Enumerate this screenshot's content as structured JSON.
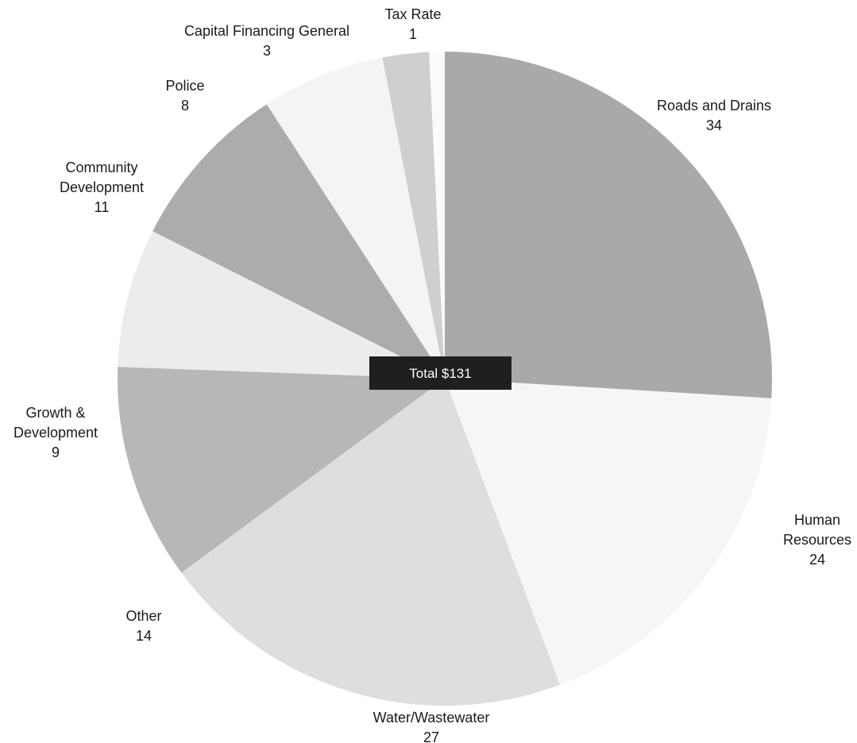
{
  "chart_data": {
    "type": "pie",
    "center_label": "Total $131",
    "start_direction": "top",
    "direction": "clockwise",
    "slices": [
      {
        "label_lines": [
          "Roads and Drains"
        ],
        "value": 34,
        "value_text": "34",
        "color": "#a9a9a9"
      },
      {
        "label_lines": [
          "Human",
          "Resources"
        ],
        "value": 24,
        "value_text": "24",
        "color": "#f6f6f6"
      },
      {
        "label_lines": [
          "Water/Wastewater"
        ],
        "value": 27,
        "value_text": "27",
        "color": "#dedede"
      },
      {
        "label_lines": [
          "Other"
        ],
        "value": 14,
        "value_text": "14",
        "color": "#b7b7b7"
      },
      {
        "label_lines": [
          "Growth &",
          "Development"
        ],
        "value": 9,
        "value_text": "9",
        "color": "#ececec"
      },
      {
        "label_lines": [
          "Community",
          "Development"
        ],
        "value": 11,
        "value_text": "11",
        "color": "#acacac"
      },
      {
        "label_lines": [
          "Police"
        ],
        "value": 8,
        "value_text": "8",
        "color": "#f4f4f4"
      },
      {
        "label_lines": [
          "Capital Financing General"
        ],
        "value": 3,
        "value_text": "3",
        "color": "#cfcfcf"
      },
      {
        "label_lines": [
          "Tax Rate"
        ],
        "value": 1,
        "value_text": "1",
        "color": "#fbfbfb"
      }
    ]
  }
}
